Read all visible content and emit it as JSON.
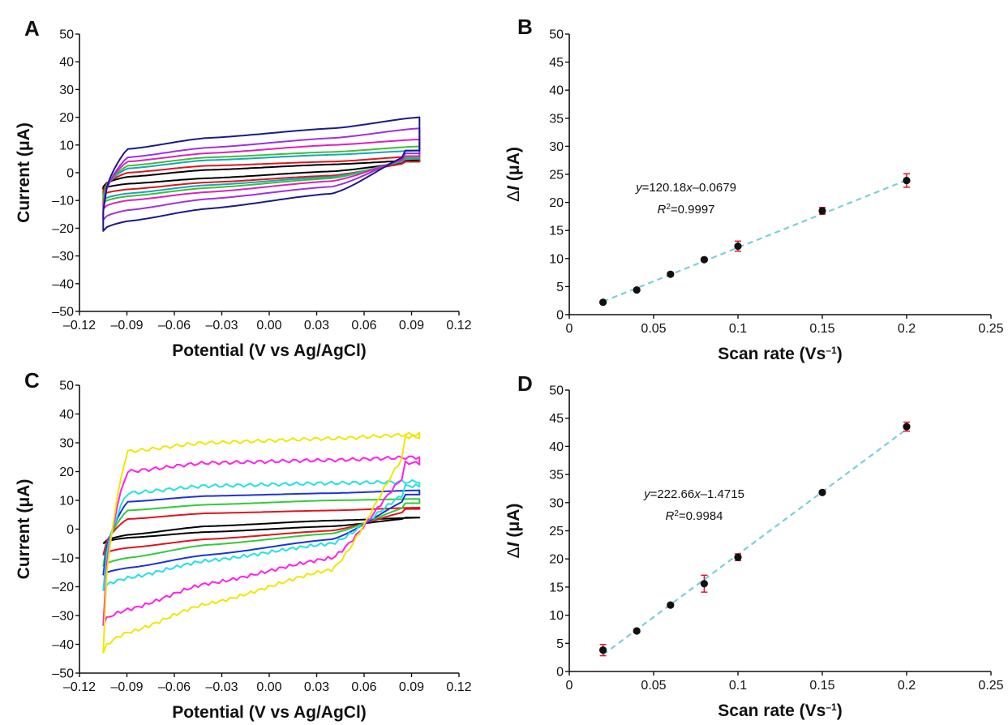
{
  "chart_data": [
    {
      "panel": "A",
      "type": "line",
      "xlabel": "Potential (V vs Ag/AgCl)",
      "ylabel": "Current (μA)",
      "xlim": [
        -0.12,
        0.12
      ],
      "ylim": [
        -50,
        50
      ],
      "xticks": [
        "–0.12",
        "–0.09",
        "–0.06",
        "–0.03",
        "0.00",
        "0.03",
        "0.06",
        "0.09",
        "0.12"
      ],
      "yticks": [
        "–50",
        "–40",
        "–30",
        "–20",
        "–10",
        "0",
        "10",
        "20",
        "30",
        "40",
        "50"
      ],
      "xrange_scan": [
        -0.105,
        0.095
      ],
      "series": [
        {
          "color": "#000000",
          "upper": [
            -5,
            -1.5,
            1,
            3,
            4.5
          ],
          "lower": [
            -6,
            -4,
            -2,
            0.5,
            4
          ]
        },
        {
          "color": "#e0141e",
          "upper": [
            -6.5,
            0,
            2.5,
            4,
            6
          ],
          "lower": [
            -8,
            -6,
            -3.5,
            -1,
            4
          ]
        },
        {
          "color": "#18a8b0",
          "upper": [
            -8,
            1.5,
            4.5,
            6.5,
            8
          ],
          "lower": [
            -10,
            -7.5,
            -4.5,
            -1.5,
            5
          ]
        },
        {
          "color": "#3cbf3c",
          "upper": [
            -9,
            2.5,
            5.5,
            7.5,
            9.5
          ],
          "lower": [
            -11,
            -8.5,
            -5.5,
            -2,
            5.5
          ]
        },
        {
          "color": "#e020c0",
          "upper": [
            -11,
            4,
            7,
            10,
            12
          ],
          "lower": [
            -13,
            -10,
            -7,
            -3,
            6
          ]
        },
        {
          "color": "#a030e0",
          "upper": [
            -13,
            5.5,
            9,
            12.5,
            16
          ],
          "lower": [
            -17,
            -13.5,
            -9.5,
            -5,
            7
          ]
        },
        {
          "color": "#1a1a8a",
          "upper": [
            -14,
            8.5,
            12.5,
            16,
            20
          ],
          "lower": [
            -21,
            -17.5,
            -13,
            -7.5,
            8
          ]
        }
      ]
    },
    {
      "panel": "B",
      "type": "scatter",
      "xlabel": "Scan rate (Vs–1)",
      "ylabel": "ΔI (μA)",
      "xlim": [
        0,
        0.25
      ],
      "ylim": [
        0,
        50
      ],
      "xticks": [
        "0",
        "0.05",
        "0.1",
        "0.15",
        "0.2",
        "0.25"
      ],
      "yticks": [
        "0",
        "5",
        "10",
        "15",
        "20",
        "25",
        "30",
        "35",
        "40",
        "45",
        "50"
      ],
      "x": [
        0.02,
        0.04,
        0.06,
        0.08,
        0.1,
        0.15,
        0.2
      ],
      "y": [
        2.2,
        4.4,
        7.2,
        9.8,
        12.2,
        18.5,
        23.9
      ],
      "error": [
        0.2,
        0.2,
        0.3,
        0.3,
        0.9,
        0.6,
        1.2
      ],
      "fit": {
        "slope": 120.18,
        "intercept": -0.0679,
        "equation": "y=120.18x–0.0679",
        "r2": "R2=0.9997"
      },
      "fit_color": "#79d0da",
      "errorbar_color": "#e0142c"
    },
    {
      "panel": "C",
      "type": "line",
      "xlabel": "Potential (V vs Ag/AgCl)",
      "ylabel": "Current (μA)",
      "xlim": [
        -0.12,
        0.12
      ],
      "ylim": [
        -50,
        50
      ],
      "xticks": [
        "–0.12",
        "–0.09",
        "–0.06",
        "–0.03",
        "0.00",
        "0.03",
        "0.06",
        "0.09",
        "0.12"
      ],
      "yticks": [
        "–50",
        "–40",
        "–30",
        "–20",
        "–10",
        "0",
        "10",
        "20",
        "30",
        "40",
        "50"
      ],
      "xrange_scan": [
        -0.105,
        0.095
      ],
      "series": [
        {
          "color": "#000000",
          "upper": [
            -5,
            -2,
            1,
            3,
            4
          ],
          "lower": [
            -5,
            -3,
            -1,
            1,
            4
          ]
        },
        {
          "color": "#e0141e",
          "upper": [
            -9,
            3.5,
            5.5,
            6.5,
            7.5
          ],
          "lower": [
            -9,
            -6.5,
            -3.5,
            -0.5,
            7
          ]
        },
        {
          "color": "#2ecc3a",
          "upper": [
            -13,
            6.5,
            8.5,
            10,
            10.5
          ],
          "lower": [
            -13,
            -10,
            -5.5,
            -1.5,
            9
          ]
        },
        {
          "color": "#1c33d8",
          "upper": [
            -16,
            9.5,
            11.5,
            12.5,
            13.5
          ],
          "lower": [
            -16,
            -13.5,
            -9,
            -3.5,
            12
          ]
        },
        {
          "color": "#22e0e8",
          "upper": [
            -21,
            12.5,
            15,
            16,
            16.5
          ],
          "lower": [
            -21,
            -17,
            -11,
            -5,
            15
          ]
        },
        {
          "color": "#ff20e8",
          "upper": [
            -33,
            20,
            23,
            24,
            25
          ],
          "lower": [
            -33,
            -28,
            -19,
            -10,
            23
          ]
        },
        {
          "color": "#f2e600",
          "upper": [
            -43,
            27,
            30,
            31.5,
            33
          ],
          "lower": [
            -43,
            -36,
            -26,
            -14,
            32
          ]
        }
      ]
    },
    {
      "panel": "D",
      "type": "scatter",
      "xlabel": "Scan rate (Vs–1)",
      "ylabel": "ΔI (μA)",
      "xlim": [
        0,
        0.25
      ],
      "ylim": [
        0,
        50
      ],
      "xticks": [
        "0",
        "0.05",
        "0.1",
        "0.15",
        "0.2",
        "0.25"
      ],
      "yticks": [
        "0",
        "5",
        "10",
        "15",
        "20",
        "25",
        "30",
        "35",
        "40",
        "45",
        "50"
      ],
      "x": [
        0.02,
        0.04,
        0.06,
        0.08,
        0.1,
        0.15,
        0.2
      ],
      "y": [
        3.8,
        7.2,
        11.8,
        15.6,
        20.3,
        31.8,
        43.5
      ],
      "error": [
        1.0,
        0.3,
        0.3,
        1.5,
        0.6,
        0.3,
        0.8
      ],
      "fit": {
        "slope": 222.66,
        "intercept": -1.4715,
        "equation": "y=222.66x–1.4715",
        "r2": "R2=0.9984"
      },
      "fit_color": "#79d0da",
      "errorbar_color": "#e0142c"
    }
  ]
}
